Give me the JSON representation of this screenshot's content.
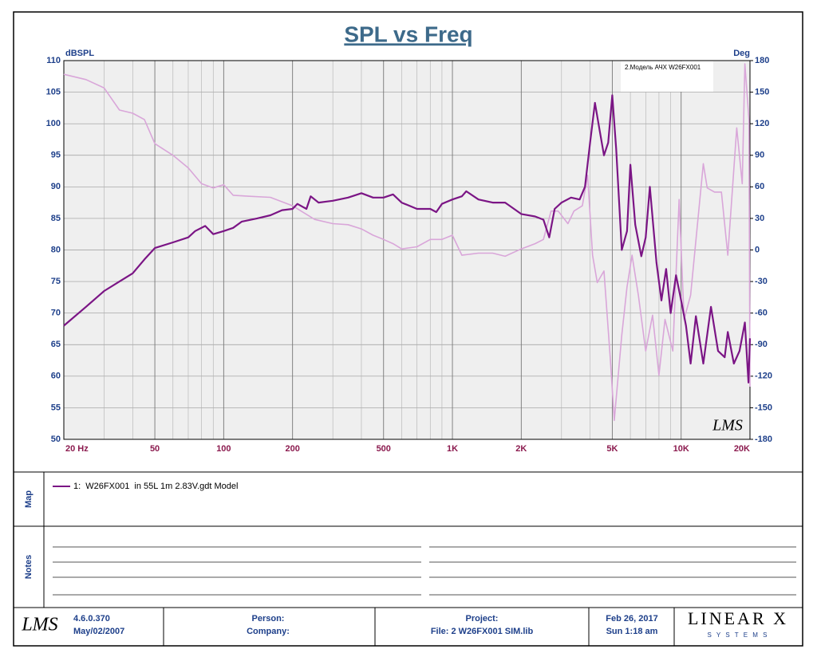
{
  "chart_data": {
    "type": "line",
    "title": "SPL vs Freq",
    "ylabel": "dBSPL",
    "y2label": "Deg",
    "annotation": "2.Модель АЧХ W26FX001",
    "xscale": "log",
    "grid": true,
    "xlim": [
      20,
      20000
    ],
    "xticks": [
      {
        "value": 20,
        "label": "20 Hz"
      },
      50,
      100,
      200,
      500,
      {
        "value": 1000,
        "label": "1K"
      },
      {
        "value": 2000,
        "label": "2K"
      },
      {
        "value": 5000,
        "label": "5K"
      },
      {
        "value": 10000,
        "label": "10K"
      },
      {
        "value": 20000,
        "label": "20K"
      }
    ],
    "xminorticks": [
      30,
      40,
      60,
      70,
      80,
      90,
      300,
      400,
      600,
      700,
      800,
      900,
      3000,
      4000,
      6000,
      7000,
      8000,
      9000
    ],
    "ylim": [
      50,
      110
    ],
    "yticks": [
      50,
      55,
      60,
      65,
      70,
      75,
      80,
      85,
      90,
      95,
      100,
      105,
      110
    ],
    "y2lim": [
      -180,
      180
    ],
    "y2ticks": [
      -180,
      -150,
      -120,
      -90,
      -60,
      -30,
      0,
      30,
      60,
      90,
      120,
      150,
      180
    ],
    "series": [
      {
        "name": "1:  W26FX001  in 55L 1m 2.83V.gdt Model",
        "color": "#7b1585",
        "x": [
          20,
          25,
          30,
          35,
          40,
          45,
          50,
          60,
          70,
          75,
          83,
          90,
          100,
          110,
          120,
          140,
          160,
          180,
          200,
          210,
          230,
          240,
          260,
          300,
          350,
          400,
          450,
          500,
          550,
          600,
          700,
          800,
          850,
          900,
          1000,
          1100,
          1150,
          1300,
          1500,
          1700,
          2000,
          2300,
          2500,
          2650,
          2800,
          3000,
          3300,
          3600,
          3800,
          4000,
          4200,
          4400,
          4600,
          4800,
          5000,
          5200,
          5500,
          5800,
          6000,
          6300,
          6700,
          7000,
          7300,
          7800,
          8200,
          8600,
          9000,
          9500,
          10000,
          10500,
          11000,
          11600,
          12500,
          13500,
          14500,
          15500,
          16000,
          17000,
          18000,
          19000,
          19700,
          20000
        ],
        "values": [
          68,
          71,
          73.5,
          75,
          76.3,
          78.5,
          80.3,
          81.2,
          82,
          83,
          83.8,
          82.5,
          83,
          83.5,
          84.5,
          85,
          85.5,
          86.3,
          86.5,
          87.3,
          86.5,
          88.5,
          87.5,
          87.8,
          88.3,
          89,
          88.3,
          88.3,
          88.8,
          87.5,
          86.5,
          86.5,
          86,
          87.3,
          88,
          88.5,
          89.3,
          88,
          87.5,
          87.5,
          85.7,
          85.3,
          84.8,
          82,
          86.5,
          87.5,
          88.3,
          88,
          90,
          97,
          103.3,
          99,
          95,
          97,
          104.5,
          96,
          80,
          83,
          93.5,
          84,
          79,
          82,
          90,
          78,
          72,
          77,
          70,
          76,
          72,
          68,
          62,
          69.5,
          62,
          71,
          64,
          63,
          67,
          62,
          64,
          68.5,
          59,
          66
        ]
      },
      {
        "color": "#d9a6d9",
        "axis": "y2",
        "x": [
          20,
          25,
          30,
          35,
          40,
          45,
          50,
          60,
          70,
          80,
          90,
          100,
          110,
          130,
          160,
          200,
          250,
          300,
          350,
          400,
          450,
          500,
          550,
          600,
          700,
          800,
          900,
          1000,
          1100,
          1300,
          1500,
          1700,
          2000,
          2300,
          2500,
          2700,
          2900,
          3200,
          3400,
          3700,
          3900,
          4100,
          4300,
          4600,
          4900,
          5100,
          5500,
          5800,
          6100,
          6500,
          7000,
          7500,
          8000,
          8500,
          9200,
          9800,
          10300,
          11000,
          12500,
          13000,
          14000,
          15000,
          16000,
          17500,
          18500,
          19000,
          19800,
          20000
        ],
        "values": [
          167,
          162,
          154,
          133,
          130,
          124,
          101,
          90,
          78,
          63,
          59,
          62,
          52,
          51,
          50,
          42,
          29,
          25,
          24,
          20,
          14,
          10,
          6,
          1,
          3,
          10,
          10,
          14,
          -5,
          -3,
          -3,
          -6,
          1,
          6,
          10,
          37,
          37,
          25,
          37,
          42,
          71,
          -5,
          -31,
          -20,
          -103,
          -162,
          -81,
          -35,
          -5,
          -43,
          -96,
          -62,
          -119,
          -66,
          -96,
          48,
          -66,
          -43,
          82,
          59,
          55,
          55,
          -5,
          116,
          63,
          177,
          124,
          -130
        ]
      }
    ]
  },
  "map_label": "Map",
  "notes_label": "Notes",
  "footer": {
    "logo": "LMS",
    "version": "4.6.0.370",
    "version_date": "May/02/2007",
    "person": "Person:",
    "company": "Company:",
    "project": "Project:",
    "file": "File: 2 W26FX001 SIM.lib",
    "date": "Feb 26, 2017",
    "time": "Sun  1:18 am",
    "brand": "LINEAR X",
    "brand_sub": "S Y S T E M S"
  },
  "plot_logo": "LMS"
}
